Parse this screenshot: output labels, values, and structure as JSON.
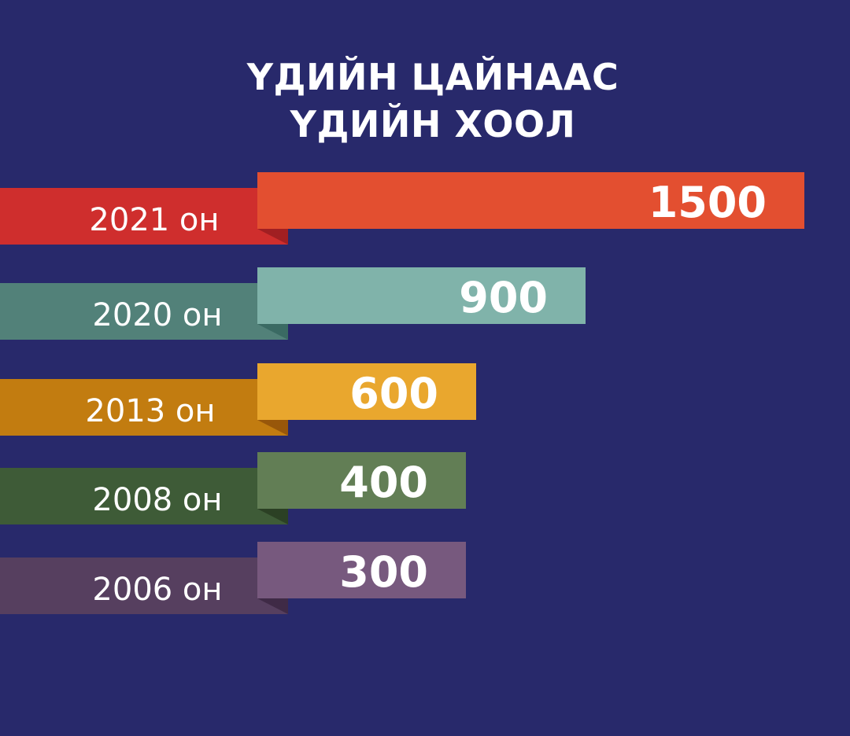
{
  "title": {
    "line1": "ҮДИЙН ЦАЙНААС",
    "line2": "ҮДИЙН ХООЛ"
  },
  "chart_data": {
    "type": "bar",
    "orientation": "horizontal",
    "title": "ҮДИЙН ЦАЙНААС ҮДИЙН ХООЛ",
    "categories": [
      "2021 он",
      "2020 он",
      "2013 он",
      "2008 он",
      "2006 он"
    ],
    "values": [
      1500,
      900,
      600,
      400,
      300
    ],
    "value_labels": [
      "1500",
      "900",
      "600",
      "400",
      "300"
    ],
    "grid": false,
    "legend": "none"
  },
  "colors": {
    "background": "#28296b",
    "bars": [
      "#e34f30",
      "#80b3aa",
      "#e9a72e",
      "#627e55",
      "#77597e"
    ],
    "tabs": [
      "#cf2e2d",
      "#528179",
      "#c27c10",
      "#3e5b37",
      "#563f5f"
    ],
    "folds": [
      "#a11f22",
      "#3a6a63",
      "#98570a",
      "#2b4024",
      "#3f2a46"
    ]
  }
}
